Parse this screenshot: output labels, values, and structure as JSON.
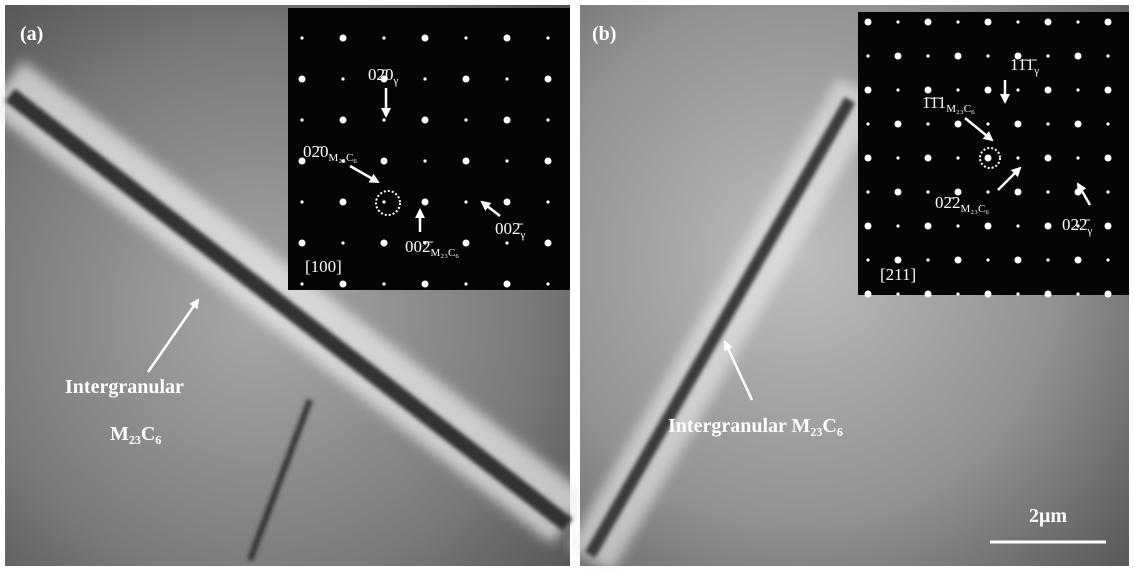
{
  "panels": [
    {
      "label": "(a)",
      "zone_axis": "[100]",
      "spots": [
        {
          "index": "02̄0",
          "sub": "γ"
        },
        {
          "index": "02̄0",
          "sub": "M₂₃C₆"
        },
        {
          "index": "002̄",
          "sub": "M₂₃C₆"
        },
        {
          "index": "002̄",
          "sub": "γ"
        }
      ],
      "annotation": [
        "Intergranular",
        "M₂₃C₆"
      ]
    },
    {
      "label": "(b)",
      "zone_axis": "[211]",
      "spots": [
        {
          "index": "11̄1̄",
          "sub": "γ"
        },
        {
          "index": "1̄1̄1",
          "sub": "M₂₃C₆"
        },
        {
          "index": "02̄2",
          "sub": "M₂₃C₆"
        },
        {
          "index": "022̄",
          "sub": "γ"
        }
      ],
      "annotation": [
        "Intergranular M₂₃C₆"
      ],
      "scale_bar": "2μm"
    }
  ]
}
